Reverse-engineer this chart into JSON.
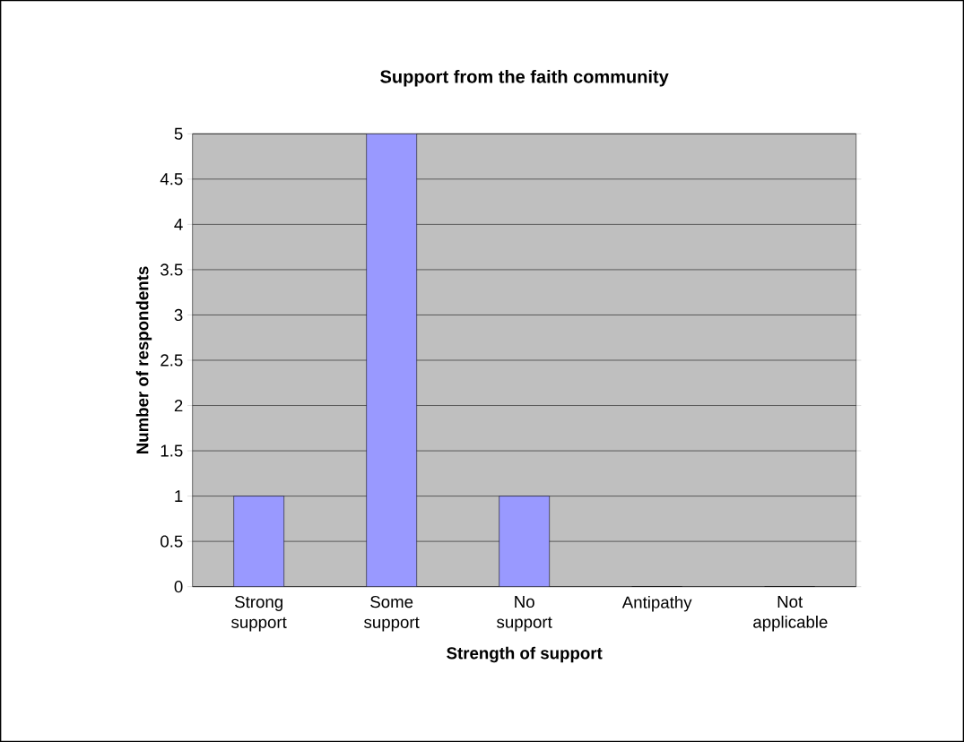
{
  "chart_data": {
    "type": "bar",
    "title": "Support from the faith community",
    "xlabel": "Strength of support",
    "ylabel": "Number of respondents",
    "categories": [
      "Strong support",
      "Some support",
      "No support",
      "Antipathy",
      "Not applicable"
    ],
    "values": [
      1,
      5,
      1,
      0,
      0
    ],
    "color": "#9999ff",
    "ylim": [
      0,
      5
    ],
    "yticks": [
      0,
      0.5,
      1,
      1.5,
      2,
      2.5,
      3,
      3.5,
      4,
      4.5,
      5
    ],
    "grid": "y"
  }
}
